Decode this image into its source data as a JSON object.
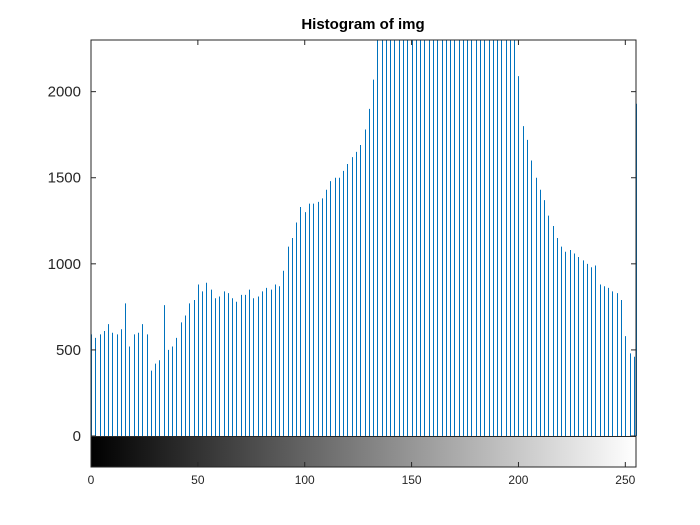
{
  "chart_data": {
    "type": "bar",
    "title": "Histogram of img",
    "xlabel": "",
    "ylabel": "",
    "xlim": [
      0,
      255
    ],
    "ylim": [
      0,
      2300
    ],
    "yticks": [
      0,
      500,
      1000,
      1500,
      2000
    ],
    "xticks": [
      0,
      50,
      100,
      150,
      200,
      250
    ],
    "grid": false,
    "colorbar": "grayscale",
    "bar_color": "#0072BD",
    "series": [
      {
        "x": [
          0,
          2,
          4,
          6,
          8,
          10,
          12,
          14,
          16,
          18,
          20,
          22,
          24,
          26,
          28,
          30,
          32,
          34,
          36,
          38,
          40,
          42,
          44,
          46,
          48,
          50,
          52,
          54,
          56,
          58,
          60,
          62,
          64,
          66,
          68,
          70,
          72,
          74,
          76,
          78,
          80,
          82,
          84,
          86,
          88,
          90,
          92,
          94,
          96,
          98,
          100,
          102,
          104,
          106,
          108,
          110,
          112,
          114,
          116,
          118,
          120,
          122,
          124,
          126,
          128,
          130,
          132,
          134,
          136,
          138,
          140,
          142,
          144,
          146,
          148,
          150,
          152,
          154,
          156,
          158,
          160,
          162,
          164,
          166,
          168,
          170,
          172,
          174,
          176,
          178,
          180,
          182,
          184,
          186,
          188,
          190,
          192,
          194,
          196,
          198,
          200,
          202,
          204,
          206,
          208,
          210,
          212,
          214,
          216,
          218,
          220,
          222,
          224,
          226,
          228,
          230,
          232,
          234,
          236,
          238,
          240,
          242,
          244,
          246,
          248,
          250,
          252,
          254,
          255
        ],
        "values": [
          590,
          570,
          590,
          610,
          650,
          600,
          590,
          620,
          770,
          520,
          590,
          600,
          650,
          590,
          380,
          420,
          440,
          760,
          500,
          520,
          570,
          660,
          700,
          770,
          790,
          880,
          840,
          890,
          850,
          800,
          810,
          840,
          830,
          800,
          780,
          820,
          820,
          850,
          800,
          810,
          840,
          860,
          850,
          880,
          870,
          960,
          1100,
          1150,
          1240,
          1330,
          1300,
          1350,
          1350,
          1360,
          1380,
          1430,
          1480,
          1500,
          1500,
          1540,
          1580,
          1620,
          1650,
          1690,
          1780,
          1900,
          2070,
          2300,
          2300,
          2300,
          2300,
          2300,
          2300,
          2300,
          2300,
          2300,
          2300,
          2300,
          2300,
          2300,
          2300,
          2300,
          2300,
          2300,
          2300,
          2300,
          2300,
          2300,
          2300,
          2300,
          2300,
          2300,
          2300,
          2300,
          2300,
          2300,
          2300,
          2300,
          2300,
          2300,
          2090,
          1800,
          1720,
          1600,
          1500,
          1430,
          1370,
          1280,
          1220,
          1150,
          1100,
          1070,
          1080,
          1060,
          1040,
          1020,
          1000,
          980,
          990,
          880,
          870,
          860,
          840,
          830,
          790,
          580,
          480,
          460,
          1930
        ]
      }
    ]
  }
}
